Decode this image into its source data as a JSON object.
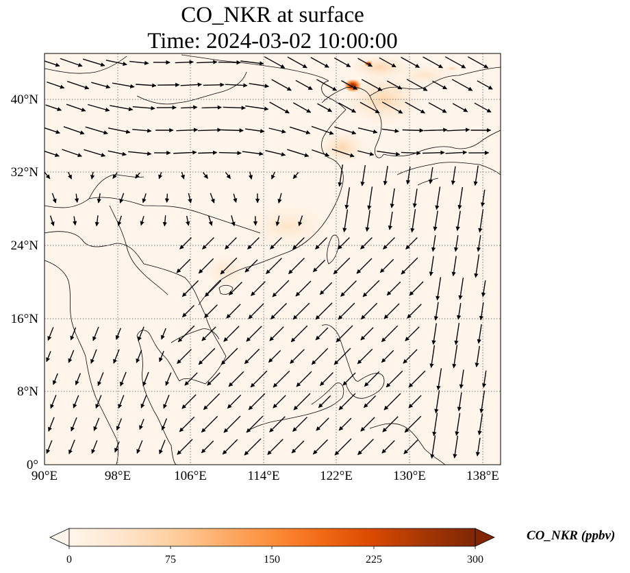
{
  "title": {
    "line1": "CO_NKR at surface",
    "line2": "Time: 2024-03-02 10:00:00"
  },
  "map": {
    "lon_range": [
      90,
      140
    ],
    "lat_range": [
      0,
      45
    ],
    "lon_ticks": [
      "90°E",
      "98°E",
      "106°E",
      "114°E",
      "122°E",
      "130°E",
      "138°E"
    ],
    "lat_ticks": [
      "0°",
      "8°N",
      "16°N",
      "24°N",
      "32°N",
      "40°N"
    ],
    "gridlines": true,
    "background_color": "#fff5eb",
    "coastline_color": "#000000",
    "vector_color": "#000000"
  },
  "colorbar": {
    "label": "CO_NKR (ppbv)",
    "ticks": [
      "0",
      "75",
      "150",
      "225",
      "300"
    ],
    "range": [
      0,
      300
    ],
    "extend": "both",
    "colors": [
      "#fff5eb",
      "#fee6ce",
      "#fdd0a2",
      "#fdae6b",
      "#fd8d3c",
      "#f16913",
      "#d94801",
      "#a63603",
      "#7f2704"
    ]
  }
}
